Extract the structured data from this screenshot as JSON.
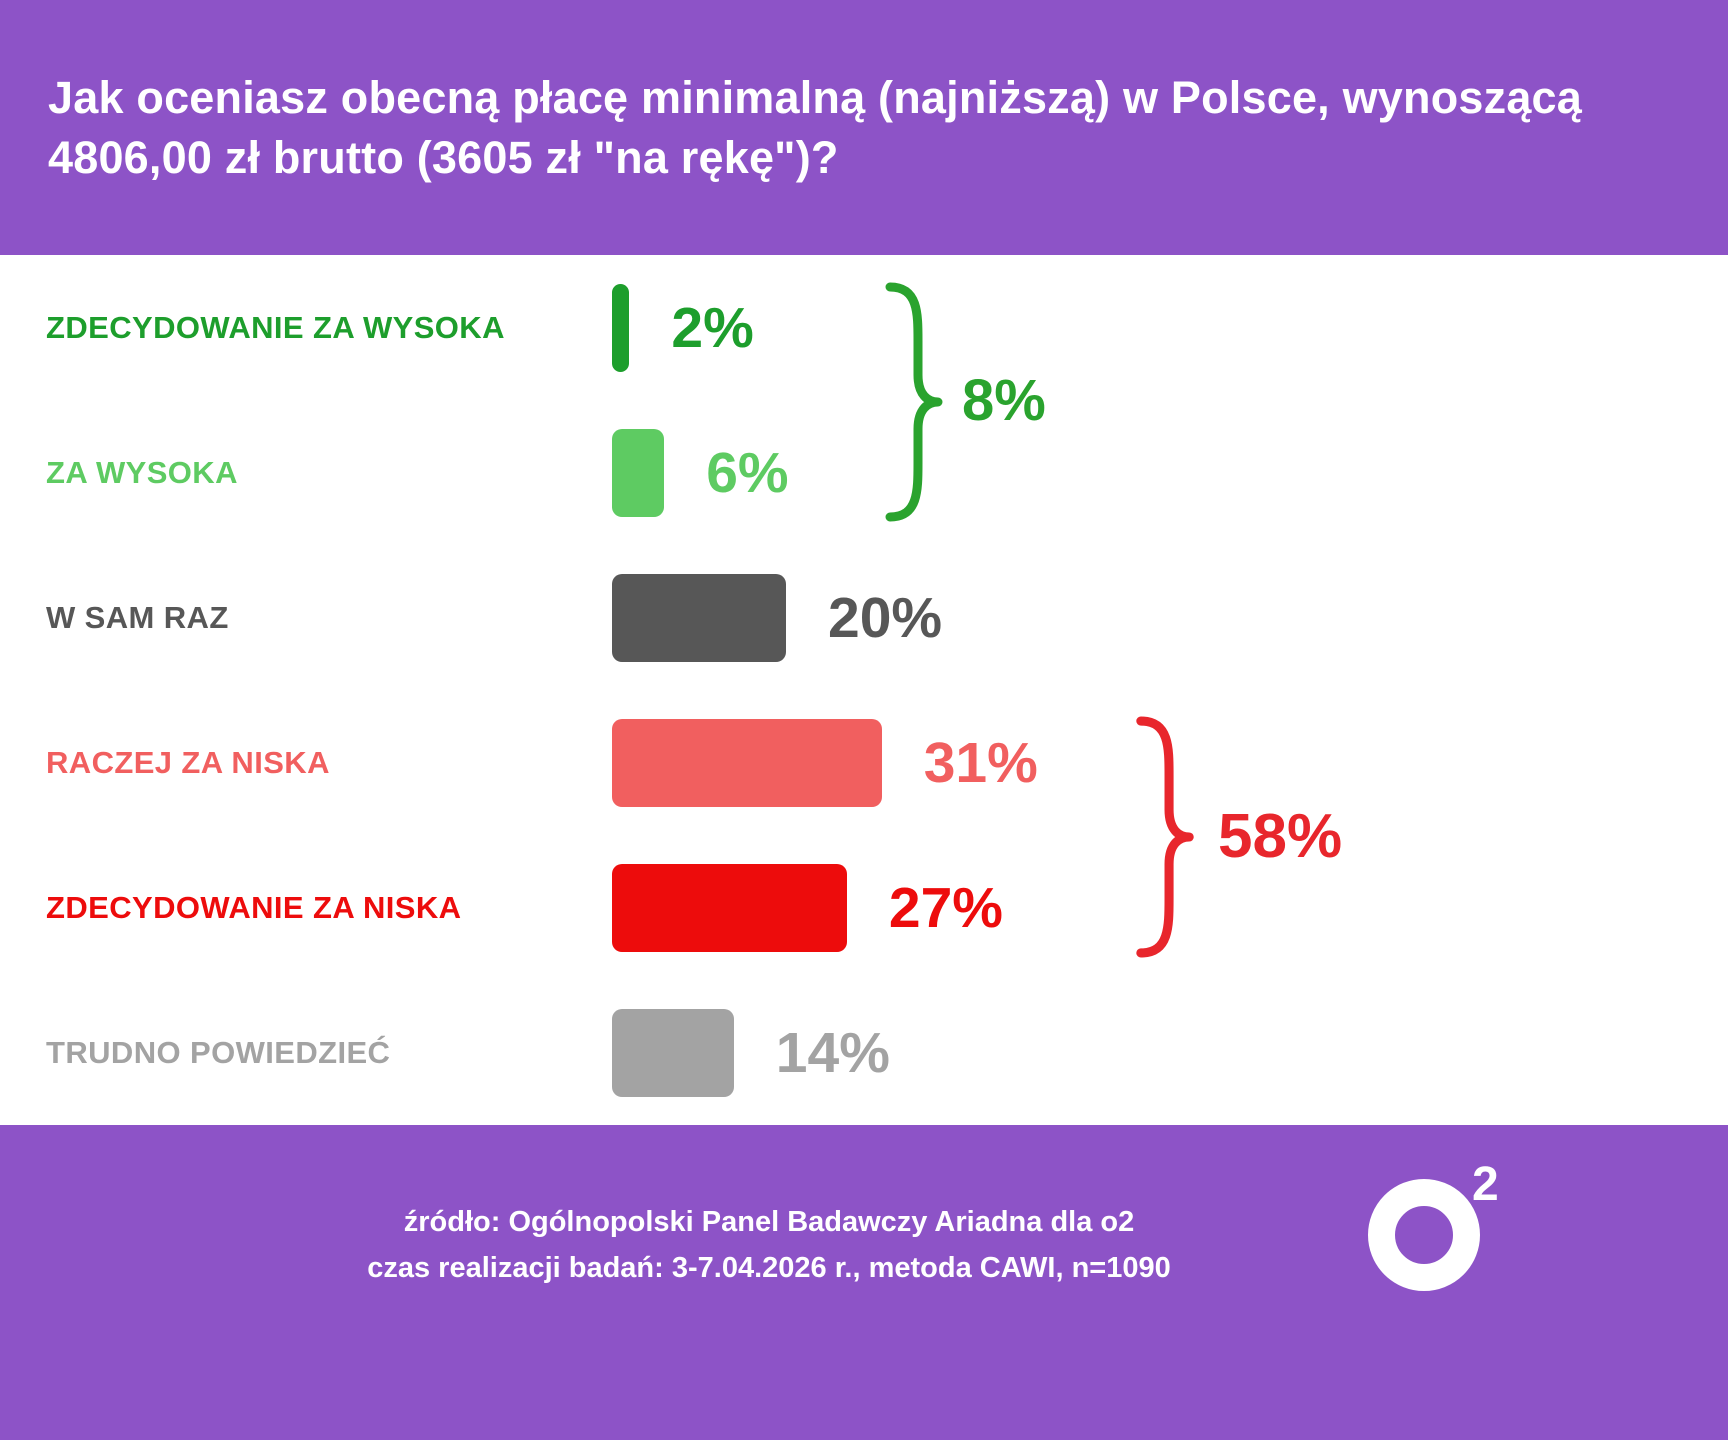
{
  "header": {
    "title": "Jak oceniasz obecną płacę minimalną (najniższą) w Polsce, wynoszącą 4806,00 zł brutto (3605 zł \"na rękę\")?"
  },
  "chart_data": {
    "type": "bar",
    "orientation": "horizontal",
    "title": "Jak oceniasz obecną płacę minimalną (najniższą) w Polsce, wynoszącą 4806,00 zł brutto (3605 zł \"na rękę\")?",
    "categories": [
      "ZDECYDOWANIE ZA WYSOKA",
      "ZA WYSOKA",
      "W SAM RAZ",
      "RACZEJ ZA NISKA",
      "ZDECYDOWANIE ZA NISKA",
      "TRUDNO POWIEDZIEĆ"
    ],
    "values": [
      2,
      6,
      20,
      31,
      27,
      14
    ],
    "value_labels": [
      "2%",
      "6%",
      "20%",
      "31%",
      "27%",
      "14%"
    ],
    "colors": [
      "#1d9e2c",
      "#5ecb62",
      "#575757",
      "#f15f5f",
      "#ed0c0c",
      "#a3a3a3"
    ],
    "xlim": [
      0,
      100
    ],
    "grid": false,
    "legend": false,
    "groups": [
      {
        "label": "8%",
        "sum": 8,
        "from_index": 0,
        "to_index": 1,
        "color": "#2aa32e"
      },
      {
        "label": "58%",
        "sum": 58,
        "from_index": 3,
        "to_index": 4,
        "color": "#e8262c"
      }
    ]
  },
  "footer": {
    "source_line1": "źródło: Ogólnopolski Panel Badawczy Ariadna dla o2",
    "source_line2": "czas realizacji badań: 3-7.04.2026 r., metoda CAWI, n=1090",
    "logo_sup": "2"
  },
  "colors": {
    "brand_purple": "#8d53c7",
    "background": "#ffffff"
  }
}
